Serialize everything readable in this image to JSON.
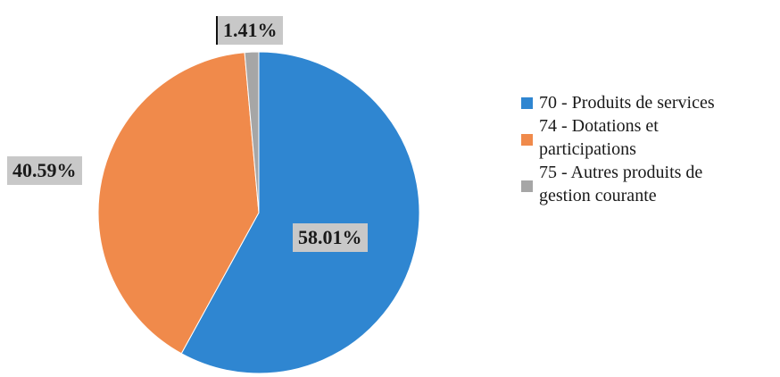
{
  "chart_data": {
    "type": "pie",
    "title": "",
    "categories": [
      "70 - Produits de services",
      "74 - Dotations et participations",
      "75 - Autres produits de gestion courante"
    ],
    "values": [
      58.01,
      40.59,
      1.41
    ],
    "data_labels": [
      "58.01%",
      "40.59%",
      "1.41%"
    ],
    "colors": [
      "#2f86d1",
      "#f08a4b",
      "#a6a6a6"
    ],
    "legend_position": "right",
    "legend_lines": [
      [
        "70 - Produits de services"
      ],
      [
        "74 - Dotations et",
        "participations"
      ],
      [
        "75 - Autres produits de",
        "gestion courante"
      ]
    ]
  }
}
